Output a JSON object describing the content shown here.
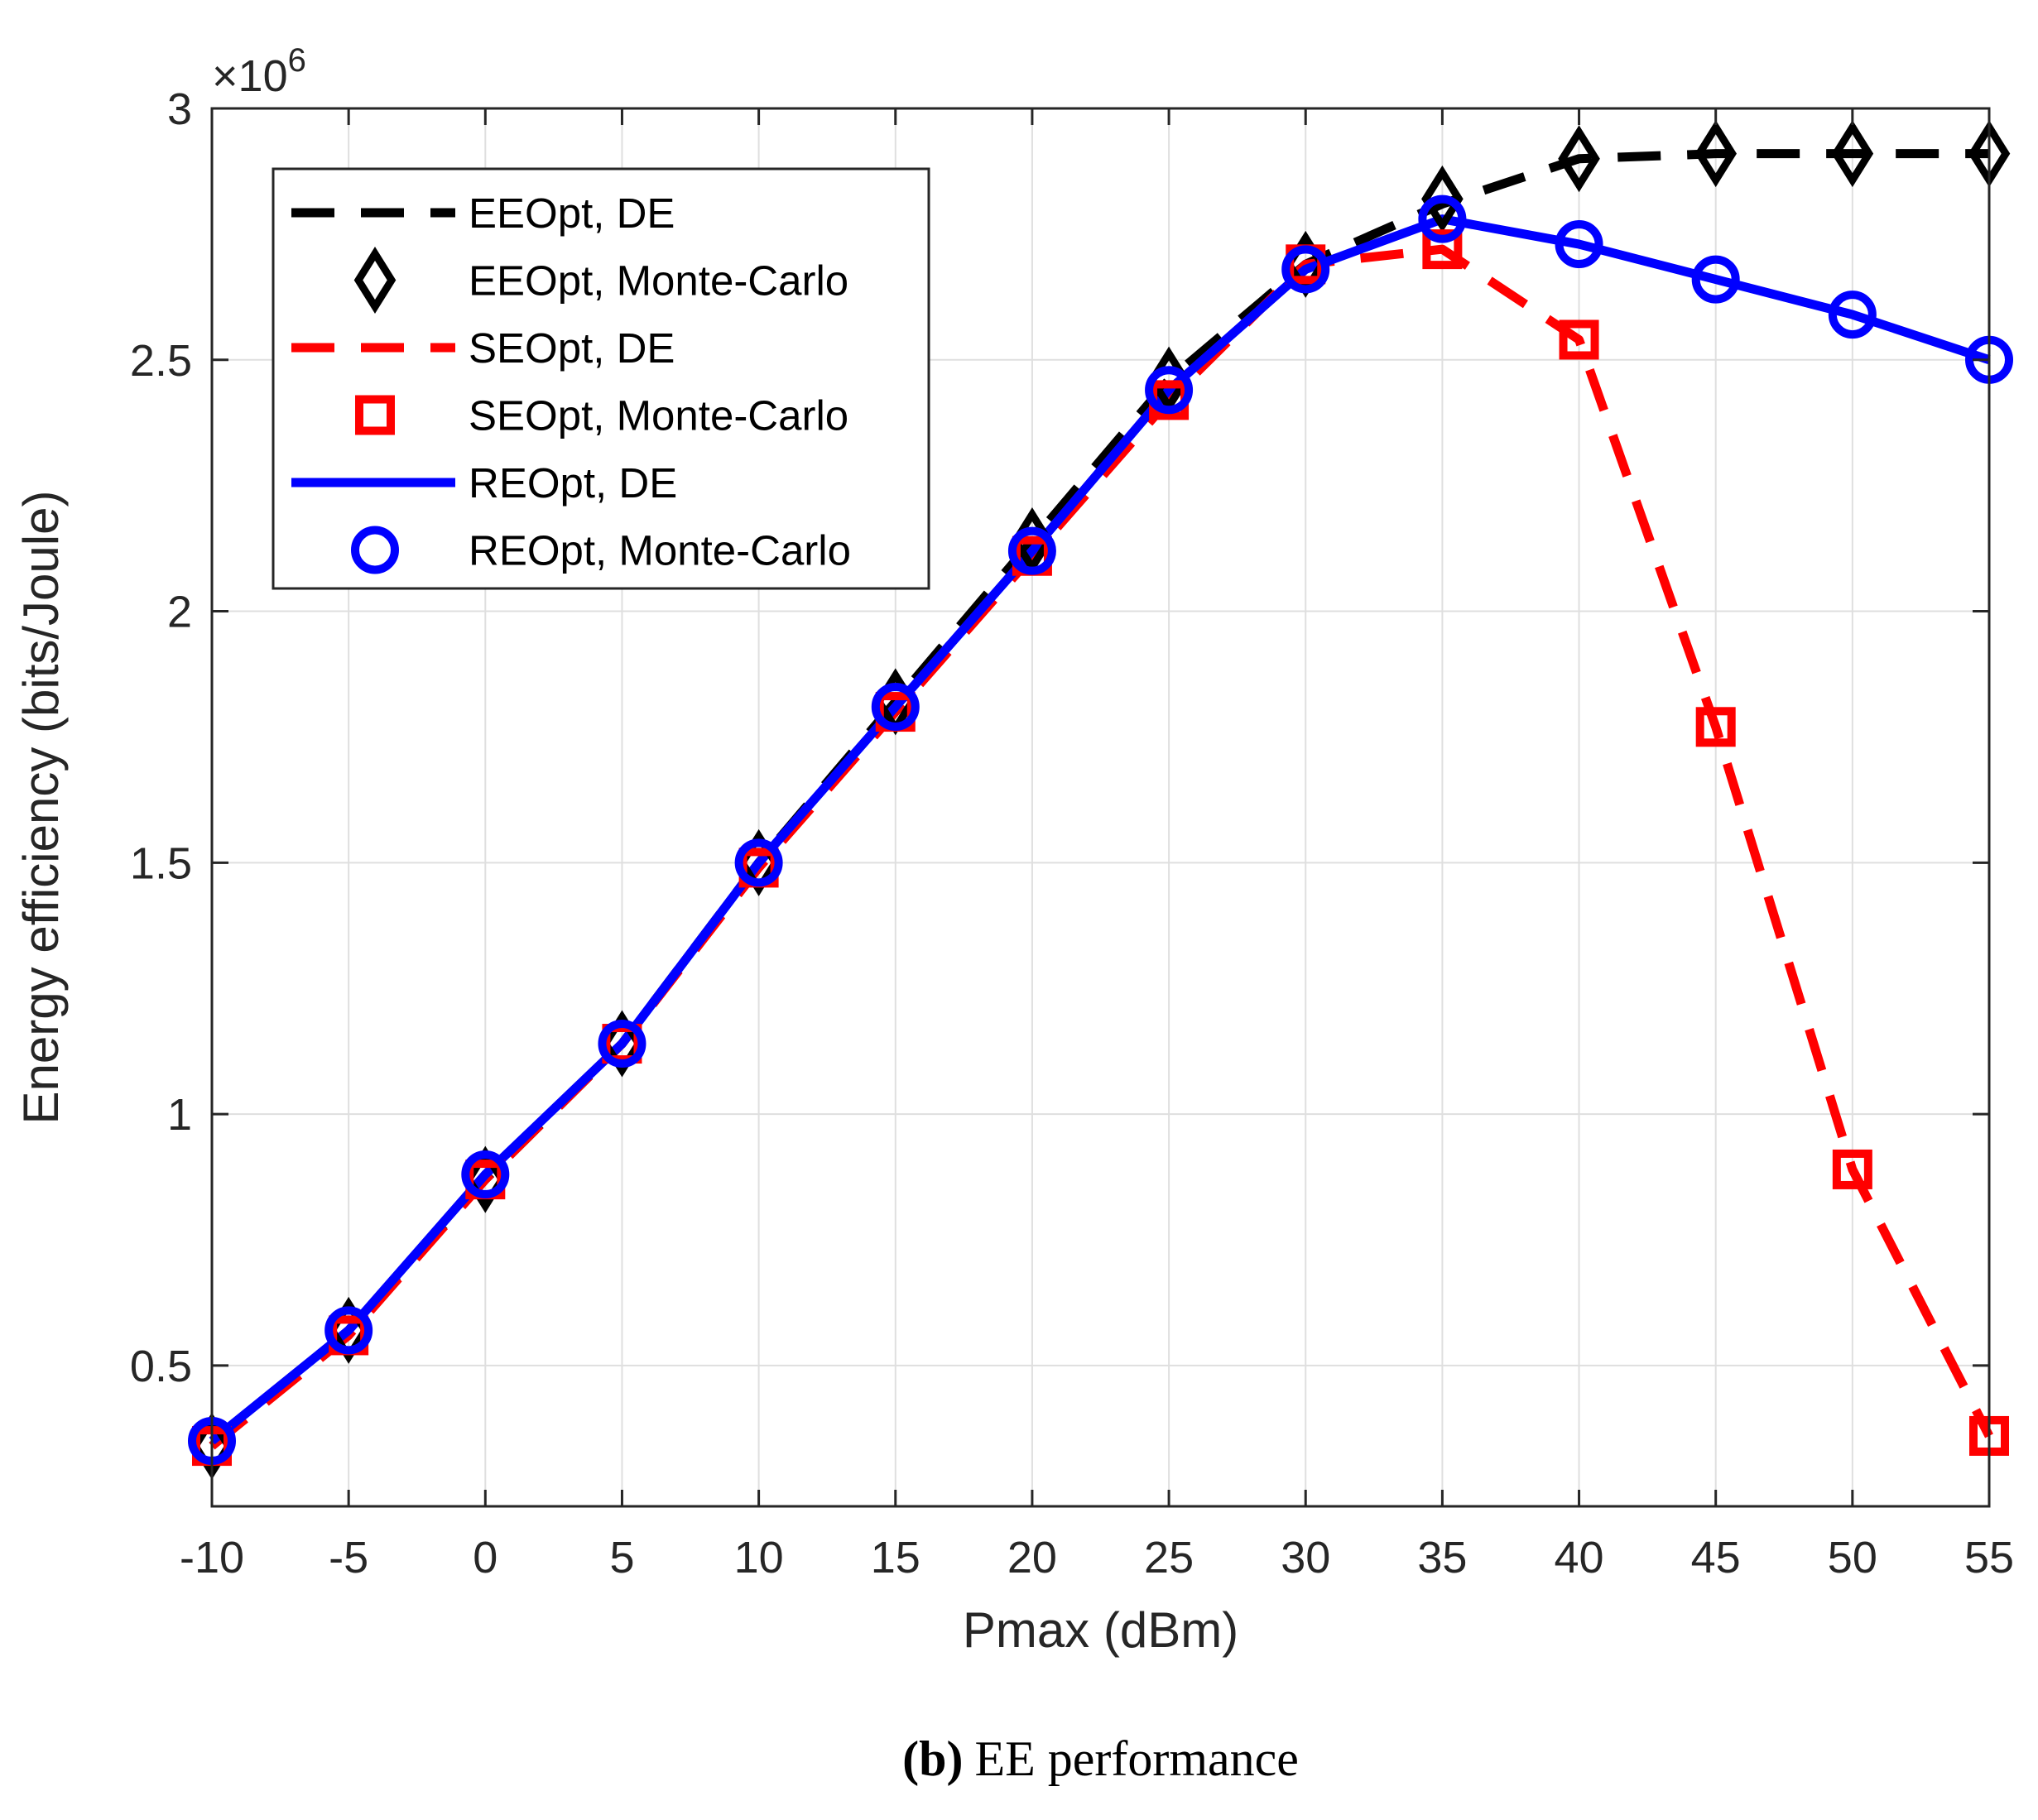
{
  "chart_data": {
    "type": "line",
    "xlabel": "Pmax (dBm)",
    "ylabel": "Energy efficiency (bits/Joule)",
    "y_exponent_label": "×10",
    "y_exponent_power": "6",
    "xlim": [
      -10,
      55
    ],
    "ylim": [
      0.22,
      3.0
    ],
    "x_ticks": [
      "-10",
      "-5",
      "0",
      "5",
      "10",
      "15",
      "20",
      "25",
      "30",
      "35",
      "40",
      "45",
      "50",
      "55"
    ],
    "y_ticks": [
      "0.5",
      "1",
      "1.5",
      "2",
      "2.5",
      "3"
    ],
    "grid": true,
    "legend_position": "top-left",
    "x": [
      -10,
      -5,
      0,
      5,
      10,
      15,
      20,
      25,
      30,
      35,
      40,
      45,
      50,
      55
    ],
    "series": [
      {
        "name": "EEOpt, DE",
        "color": "#000000",
        "style": "dashed",
        "marker": "none",
        "values": [
          0.34,
          0.57,
          0.87,
          1.14,
          1.5,
          1.82,
          2.14,
          2.46,
          2.69,
          2.81,
          2.9,
          2.91,
          2.91,
          2.91
        ]
      },
      {
        "name": "EEOpt, Monte-Carlo",
        "color": "#000000",
        "style": "none",
        "marker": "diamond",
        "values": [
          0.34,
          0.57,
          0.87,
          1.14,
          1.5,
          1.82,
          2.14,
          2.46,
          2.69,
          2.82,
          2.9,
          2.91,
          2.91,
          2.91
        ]
      },
      {
        "name": "SEOpt, DE",
        "color": "#ff0000",
        "style": "dashed",
        "marker": "none",
        "values": [
          0.34,
          0.56,
          0.87,
          1.14,
          1.49,
          1.8,
          2.11,
          2.42,
          2.69,
          2.72,
          2.54,
          1.77,
          0.89,
          0.36
        ]
      },
      {
        "name": "SEOpt, Monte-Carlo",
        "color": "#ff0000",
        "style": "none",
        "marker": "square",
        "values": [
          0.34,
          0.56,
          0.87,
          1.14,
          1.49,
          1.8,
          2.11,
          2.42,
          2.69,
          2.72,
          2.54,
          1.77,
          0.89,
          0.36
        ]
      },
      {
        "name": "REOpt, DE",
        "color": "#0000ff",
        "style": "solid",
        "marker": "none",
        "values": [
          0.35,
          0.57,
          0.88,
          1.14,
          1.5,
          1.81,
          2.12,
          2.44,
          2.68,
          2.78,
          2.73,
          2.66,
          2.59,
          2.5
        ]
      },
      {
        "name": "REOpt, Monte-Carlo",
        "color": "#0000ff",
        "style": "none",
        "marker": "circle",
        "values": [
          0.35,
          0.57,
          0.88,
          1.14,
          1.5,
          1.81,
          2.12,
          2.44,
          2.68,
          2.78,
          2.73,
          2.66,
          2.59,
          2.5
        ]
      }
    ]
  },
  "caption": {
    "label": "(b)",
    "text": "EE performance"
  }
}
